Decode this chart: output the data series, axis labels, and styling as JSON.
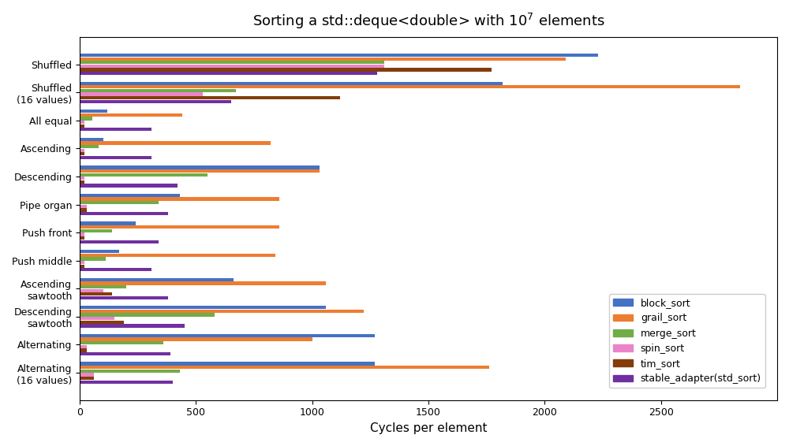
{
  "title": "Sorting a std::deque<double> with $10^7$ elements",
  "xlabel": "Cycles per element",
  "categories": [
    "Shuffled",
    "Shuffled\n(16 values)",
    "All equal",
    "Ascending",
    "Descending",
    "Pipe organ",
    "Push front",
    "Push middle",
    "Ascending\nsawtooth",
    "Descending\nsawtooth",
    "Alternating",
    "Alternating\n(16 values)"
  ],
  "algorithms": [
    "block_sort",
    "grail_sort",
    "merge_sort",
    "spin_sort",
    "tim_sort",
    "stable_adapter(std_sort)"
  ],
  "colors": [
    "#4472c4",
    "#ed7d31",
    "#70ad47",
    "#eb84c8",
    "#843c0c",
    "#7030a0"
  ],
  "data": {
    "block_sort": [
      2230,
      1820,
      120,
      100,
      1030,
      430,
      240,
      170,
      660,
      1060,
      1270,
      1270
    ],
    "grail_sort": [
      2090,
      2840,
      440,
      820,
      1030,
      860,
      860,
      840,
      1060,
      1220,
      1000,
      1760
    ],
    "merge_sort": [
      1310,
      670,
      55,
      80,
      550,
      340,
      140,
      110,
      200,
      580,
      360,
      430
    ],
    "spin_sort": [
      1310,
      530,
      20,
      20,
      20,
      30,
      20,
      20,
      100,
      150,
      30,
      60
    ],
    "tim_sort": [
      1770,
      1120,
      20,
      20,
      20,
      30,
      20,
      20,
      140,
      190,
      30,
      60
    ],
    "stable_adapter(std_sort)": [
      1280,
      650,
      310,
      310,
      420,
      380,
      340,
      310,
      380,
      450,
      390,
      400
    ]
  },
  "xlim": [
    0,
    3000
  ],
  "xticks": [
    0,
    500,
    1000,
    1500,
    2000,
    2500
  ],
  "bar_height": 0.13,
  "figsize": [
    10.0,
    5.66
  ],
  "dpi": 100
}
